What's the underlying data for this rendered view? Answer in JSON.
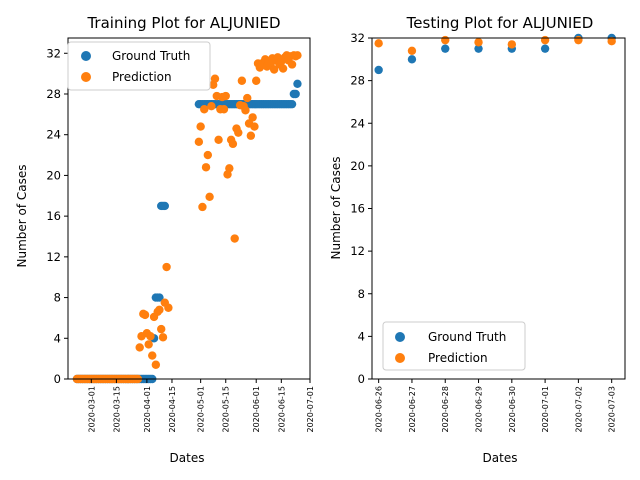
{
  "colors": {
    "ground_truth": "#1f77b4",
    "prediction": "#ff7f0e"
  },
  "chart_data": [
    {
      "type": "scatter",
      "title": "Training Plot for ALJUNIED",
      "xlabel": "Dates",
      "ylabel": "Number of Cases",
      "xlim": [
        "2020-02-17",
        "2020-07-01"
      ],
      "ylim": [
        0,
        33.5
      ],
      "x_ticks": [
        "2020-03-01",
        "2020-03-15",
        "2020-04-01",
        "2020-04-15",
        "2020-05-01",
        "2020-05-15",
        "2020-06-01",
        "2020-06-15",
        "2020-07-01"
      ],
      "y_ticks": [
        0,
        4,
        8,
        12,
        16,
        20,
        24,
        28,
        32
      ],
      "legend_position": "top-left",
      "series": [
        {
          "name": "Ground Truth",
          "points": [
            [
              "2020-02-22",
              0
            ],
            [
              "2020-02-23",
              0
            ],
            [
              "2020-02-24",
              0
            ],
            [
              "2020-02-25",
              0
            ],
            [
              "2020-02-26",
              0
            ],
            [
              "2020-02-27",
              0
            ],
            [
              "2020-02-28",
              0
            ],
            [
              "2020-02-29",
              0
            ],
            [
              "2020-03-01",
              0
            ],
            [
              "2020-03-02",
              0
            ],
            [
              "2020-03-03",
              0
            ],
            [
              "2020-03-04",
              0
            ],
            [
              "2020-03-05",
              0
            ],
            [
              "2020-03-06",
              0
            ],
            [
              "2020-03-07",
              0
            ],
            [
              "2020-03-08",
              0
            ],
            [
              "2020-03-09",
              0
            ],
            [
              "2020-03-10",
              0
            ],
            [
              "2020-03-11",
              0
            ],
            [
              "2020-03-12",
              0
            ],
            [
              "2020-03-13",
              0
            ],
            [
              "2020-03-14",
              0
            ],
            [
              "2020-03-15",
              0
            ],
            [
              "2020-03-16",
              0
            ],
            [
              "2020-03-17",
              0
            ],
            [
              "2020-03-18",
              0
            ],
            [
              "2020-03-19",
              0
            ],
            [
              "2020-03-20",
              0
            ],
            [
              "2020-03-21",
              0
            ],
            [
              "2020-03-22",
              0
            ],
            [
              "2020-03-23",
              0
            ],
            [
              "2020-03-24",
              0
            ],
            [
              "2020-03-25",
              0
            ],
            [
              "2020-03-26",
              0
            ],
            [
              "2020-03-27",
              0
            ],
            [
              "2020-03-28",
              0
            ],
            [
              "2020-03-29",
              0
            ],
            [
              "2020-03-30",
              0
            ],
            [
              "2020-03-31",
              0
            ],
            [
              "2020-04-01",
              0
            ],
            [
              "2020-04-02",
              0
            ],
            [
              "2020-04-03",
              0
            ],
            [
              "2020-04-04",
              0
            ],
            [
              "2020-04-05",
              4
            ],
            [
              "2020-04-06",
              8
            ],
            [
              "2020-04-07",
              8
            ],
            [
              "2020-04-08",
              8
            ],
            [
              "2020-04-09",
              17
            ],
            [
              "2020-04-10",
              17
            ],
            [
              "2020-04-11",
              17
            ],
            [
              "2020-04-30",
              27
            ],
            [
              "2020-05-01",
              27
            ],
            [
              "2020-05-02",
              27
            ],
            [
              "2020-05-03",
              27
            ],
            [
              "2020-05-04",
              27
            ],
            [
              "2020-05-05",
              27
            ],
            [
              "2020-05-06",
              27
            ],
            [
              "2020-05-07",
              27
            ],
            [
              "2020-05-08",
              27
            ],
            [
              "2020-05-09",
              27
            ],
            [
              "2020-05-10",
              27
            ],
            [
              "2020-05-11",
              27
            ],
            [
              "2020-05-12",
              27
            ],
            [
              "2020-05-13",
              27
            ],
            [
              "2020-05-14",
              27
            ],
            [
              "2020-05-15",
              27
            ],
            [
              "2020-05-16",
              27
            ],
            [
              "2020-05-17",
              27
            ],
            [
              "2020-05-18",
              27
            ],
            [
              "2020-05-19",
              27
            ],
            [
              "2020-05-20",
              27
            ],
            [
              "2020-05-21",
              27
            ],
            [
              "2020-05-22",
              27
            ],
            [
              "2020-05-23",
              27
            ],
            [
              "2020-05-24",
              27
            ],
            [
              "2020-05-25",
              27
            ],
            [
              "2020-05-26",
              27
            ],
            [
              "2020-05-27",
              27
            ],
            [
              "2020-05-28",
              27
            ],
            [
              "2020-05-29",
              27
            ],
            [
              "2020-05-30",
              27
            ],
            [
              "2020-05-31",
              27
            ],
            [
              "2020-06-01",
              27
            ],
            [
              "2020-06-02",
              27
            ],
            [
              "2020-06-03",
              27
            ],
            [
              "2020-06-04",
              27
            ],
            [
              "2020-06-05",
              27
            ],
            [
              "2020-06-06",
              27
            ],
            [
              "2020-06-07",
              27
            ],
            [
              "2020-06-08",
              27
            ],
            [
              "2020-06-09",
              27
            ],
            [
              "2020-06-10",
              27
            ],
            [
              "2020-06-11",
              27
            ],
            [
              "2020-06-12",
              27
            ],
            [
              "2020-06-13",
              27
            ],
            [
              "2020-06-14",
              27
            ],
            [
              "2020-06-15",
              27
            ],
            [
              "2020-06-16",
              27
            ],
            [
              "2020-06-17",
              27
            ],
            [
              "2020-06-18",
              27
            ],
            [
              "2020-06-19",
              27
            ],
            [
              "2020-06-20",
              27
            ],
            [
              "2020-06-21",
              27
            ],
            [
              "2020-06-22",
              28
            ],
            [
              "2020-06-23",
              28
            ],
            [
              "2020-06-24",
              29
            ]
          ]
        },
        {
          "name": "Prediction",
          "points": [
            [
              "2020-02-22",
              0
            ],
            [
              "2020-02-23",
              0
            ],
            [
              "2020-02-24",
              0
            ],
            [
              "2020-02-25",
              0
            ],
            [
              "2020-02-26",
              0
            ],
            [
              "2020-02-27",
              0
            ],
            [
              "2020-02-28",
              0
            ],
            [
              "2020-02-29",
              0
            ],
            [
              "2020-03-01",
              0
            ],
            [
              "2020-03-02",
              0
            ],
            [
              "2020-03-03",
              0
            ],
            [
              "2020-03-04",
              0
            ],
            [
              "2020-03-05",
              0
            ],
            [
              "2020-03-06",
              0
            ],
            [
              "2020-03-07",
              0
            ],
            [
              "2020-03-08",
              0
            ],
            [
              "2020-03-09",
              0
            ],
            [
              "2020-03-10",
              0
            ],
            [
              "2020-03-11",
              0
            ],
            [
              "2020-03-12",
              0
            ],
            [
              "2020-03-13",
              0
            ],
            [
              "2020-03-14",
              0
            ],
            [
              "2020-03-15",
              0
            ],
            [
              "2020-03-16",
              0
            ],
            [
              "2020-03-17",
              0
            ],
            [
              "2020-03-18",
              0
            ],
            [
              "2020-03-19",
              0
            ],
            [
              "2020-03-20",
              0
            ],
            [
              "2020-03-21",
              0
            ],
            [
              "2020-03-22",
              0
            ],
            [
              "2020-03-23",
              0
            ],
            [
              "2020-03-24",
              0
            ],
            [
              "2020-03-25",
              0
            ],
            [
              "2020-03-26",
              0
            ],
            [
              "2020-03-27",
              0
            ],
            [
              "2020-03-28",
              3.1
            ],
            [
              "2020-03-29",
              4.2
            ],
            [
              "2020-03-30",
              6.4
            ],
            [
              "2020-03-31",
              6.3
            ],
            [
              "2020-04-01",
              4.5
            ],
            [
              "2020-04-02",
              3.4
            ],
            [
              "2020-04-03",
              4.2
            ],
            [
              "2020-04-04",
              2.3
            ],
            [
              "2020-04-05",
              6.1
            ],
            [
              "2020-04-06",
              1.4
            ],
            [
              "2020-04-07",
              6.6
            ],
            [
              "2020-04-08",
              6.8
            ],
            [
              "2020-04-09",
              4.9
            ],
            [
              "2020-04-10",
              4.1
            ],
            [
              "2020-04-11",
              7.5
            ],
            [
              "2020-04-12",
              11.0
            ],
            [
              "2020-04-13",
              7.0
            ],
            [
              "2020-04-30",
              23.3
            ],
            [
              "2020-05-01",
              24.8
            ],
            [
              "2020-05-02",
              16.9
            ],
            [
              "2020-05-03",
              26.5
            ],
            [
              "2020-05-04",
              20.8
            ],
            [
              "2020-05-05",
              22.0
            ],
            [
              "2020-05-06",
              17.9
            ],
            [
              "2020-05-07",
              26.8
            ],
            [
              "2020-05-08",
              28.9
            ],
            [
              "2020-05-09",
              29.5
            ],
            [
              "2020-05-10",
              27.8
            ],
            [
              "2020-05-11",
              23.5
            ],
            [
              "2020-05-12",
              26.5
            ],
            [
              "2020-05-13",
              27.7
            ],
            [
              "2020-05-14",
              26.5
            ],
            [
              "2020-05-15",
              27.8
            ],
            [
              "2020-05-16",
              20.1
            ],
            [
              "2020-05-17",
              20.7
            ],
            [
              "2020-05-18",
              23.5
            ],
            [
              "2020-05-19",
              23.1
            ],
            [
              "2020-05-20",
              13.8
            ],
            [
              "2020-05-21",
              24.6
            ],
            [
              "2020-05-22",
              24.2
            ],
            [
              "2020-05-23",
              26.9
            ],
            [
              "2020-05-24",
              29.3
            ],
            [
              "2020-05-25",
              26.8
            ],
            [
              "2020-05-26",
              26.4
            ],
            [
              "2020-05-27",
              27.6
            ],
            [
              "2020-05-28",
              25.1
            ],
            [
              "2020-05-29",
              23.9
            ],
            [
              "2020-05-30",
              25.7
            ],
            [
              "2020-05-31",
              24.8
            ],
            [
              "2020-06-01",
              29.3
            ],
            [
              "2020-06-02",
              31.0
            ],
            [
              "2020-06-03",
              30.6
            ],
            [
              "2020-06-04",
              30.9
            ],
            [
              "2020-06-05",
              31.1
            ],
            [
              "2020-06-06",
              31.4
            ],
            [
              "2020-06-07",
              30.7
            ],
            [
              "2020-06-08",
              31.2
            ],
            [
              "2020-06-09",
              30.8
            ],
            [
              "2020-06-10",
              31.5
            ],
            [
              "2020-06-11",
              30.4
            ],
            [
              "2020-06-12",
              31.3
            ],
            [
              "2020-06-13",
              31.6
            ],
            [
              "2020-06-14",
              30.9
            ],
            [
              "2020-06-15",
              31.2
            ],
            [
              "2020-06-16",
              30.5
            ],
            [
              "2020-06-17",
              31.6
            ],
            [
              "2020-06-18",
              31.8
            ],
            [
              "2020-06-19",
              31.3
            ],
            [
              "2020-06-20",
              31.7
            ],
            [
              "2020-06-21",
              30.9
            ],
            [
              "2020-06-22",
              31.8
            ],
            [
              "2020-06-23",
              31.7
            ],
            [
              "2020-06-24",
              31.8
            ]
          ]
        }
      ]
    },
    {
      "type": "scatter",
      "title": "Testing Plot for ALJUNIED",
      "xlabel": "Dates",
      "ylabel": "Number of Cases",
      "xlim": [
        "2020-06-25.8",
        "2020-07-03.4"
      ],
      "ylim": [
        0,
        32
      ],
      "x_ticks": [
        "2020-06-26",
        "2020-06-27",
        "2020-06-28",
        "2020-06-29",
        "2020-06-30",
        "2020-07-01",
        "2020-07-02",
        "2020-07-03"
      ],
      "y_ticks": [
        0,
        4,
        8,
        12,
        16,
        20,
        24,
        28,
        32
      ],
      "legend_position": "bottom-left",
      "series": [
        {
          "name": "Ground Truth",
          "points": [
            [
              "2020-06-26",
              29
            ],
            [
              "2020-06-27",
              30
            ],
            [
              "2020-06-28",
              31
            ],
            [
              "2020-06-29",
              31
            ],
            [
              "2020-06-30",
              31
            ],
            [
              "2020-07-01",
              31
            ],
            [
              "2020-07-02",
              32
            ],
            [
              "2020-07-03",
              32
            ]
          ]
        },
        {
          "name": "Prediction",
          "points": [
            [
              "2020-06-26",
              31.5
            ],
            [
              "2020-06-27",
              30.8
            ],
            [
              "2020-06-28",
              31.8
            ],
            [
              "2020-06-29",
              31.6
            ],
            [
              "2020-06-30",
              31.4
            ],
            [
              "2020-07-01",
              31.8
            ],
            [
              "2020-07-02",
              31.8
            ],
            [
              "2020-07-03",
              31.7
            ]
          ]
        }
      ]
    }
  ]
}
